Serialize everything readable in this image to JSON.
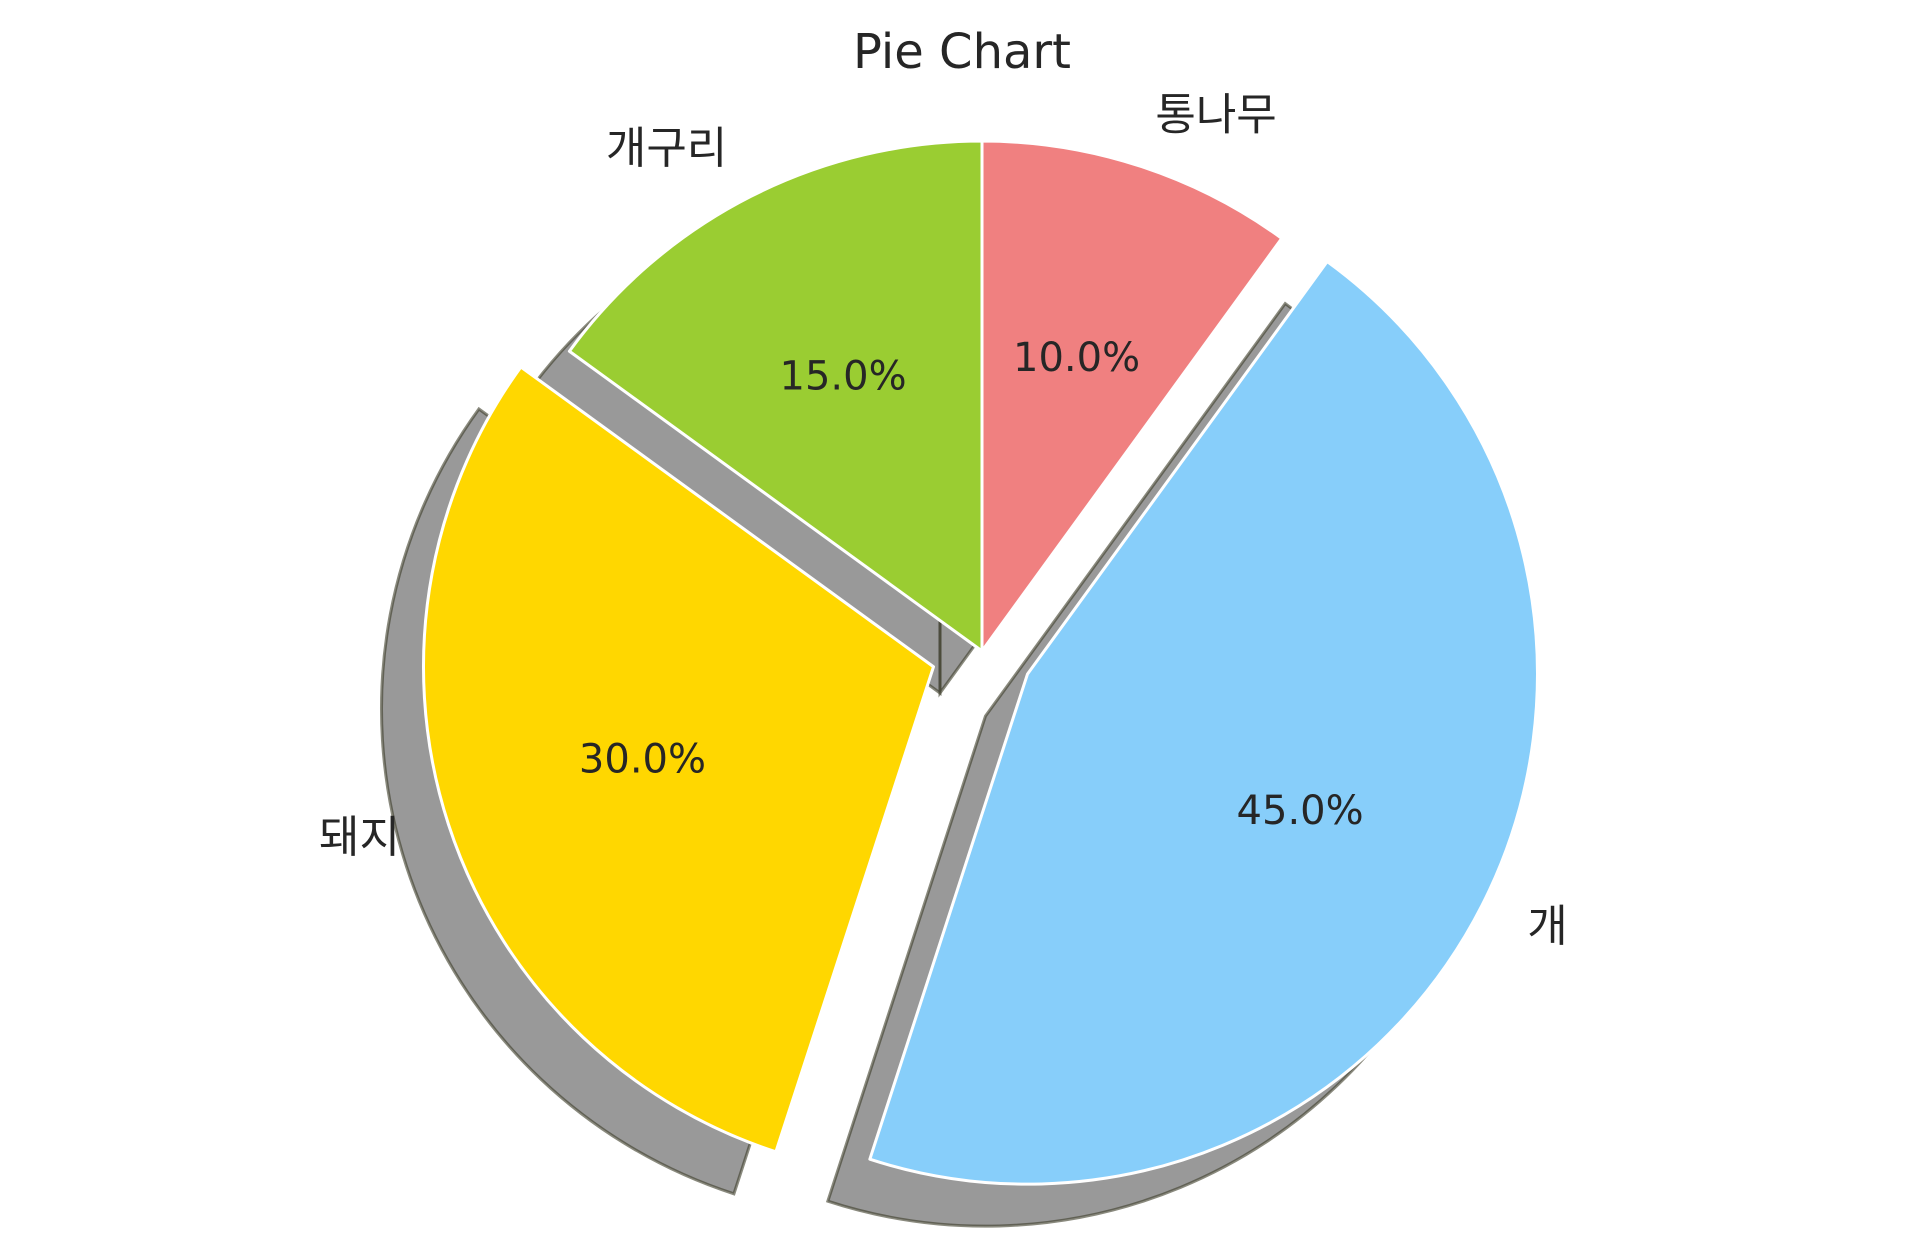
{
  "chart_data": {
    "type": "pie",
    "title": "Pie Chart",
    "labels": [
      "통나무",
      "개",
      "돼지",
      "개구리"
    ],
    "values": [
      10,
      45,
      30,
      15
    ],
    "percent_labels": [
      "10.0%",
      "45.0%",
      "30.0%",
      "15.0%"
    ],
    "colors": [
      "#f08080",
      "#87cefa",
      "#ffd700",
      "#9acd32"
    ],
    "exploded": [
      false,
      true,
      true,
      false
    ],
    "start_angle": 90,
    "direction": "clockwise",
    "shadow": true,
    "edge_color": "#ffffff"
  }
}
